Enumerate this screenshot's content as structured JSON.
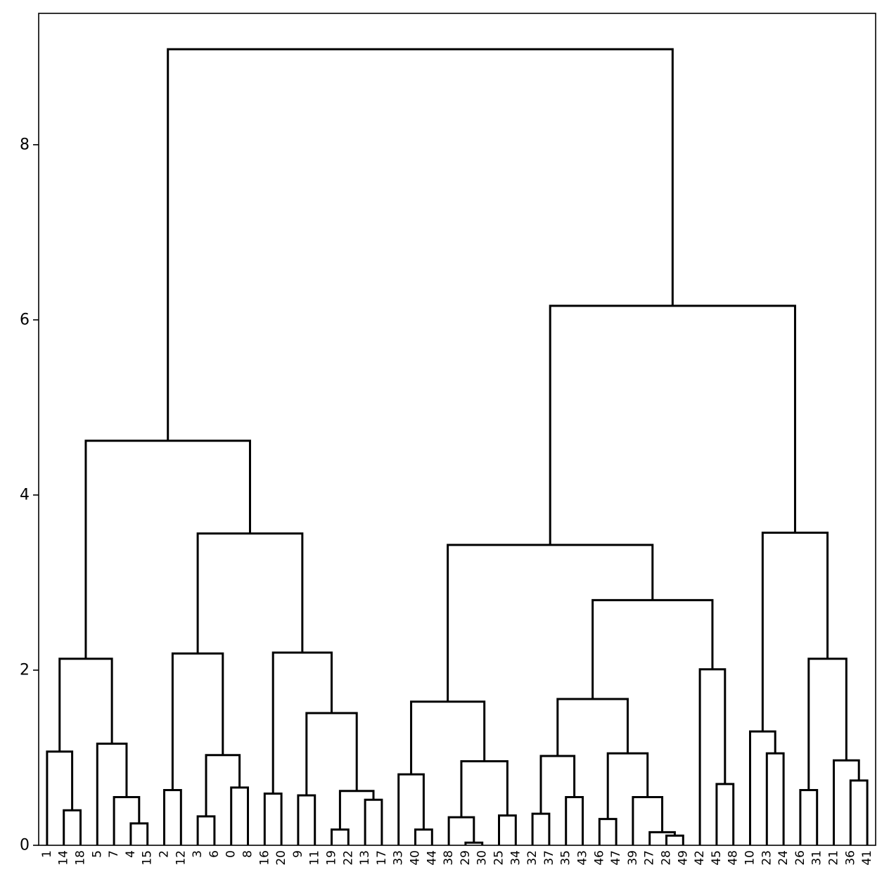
{
  "chart_data": {
    "type": "dendrogram",
    "title": "",
    "xlabel": "",
    "ylabel": "",
    "ylim": [
      0,
      9.5
    ],
    "yticks": [
      0,
      2,
      4,
      6,
      8
    ],
    "grid": false,
    "line_color": "#000000",
    "leaf_labels": [
      "1",
      "14",
      "18",
      "5",
      "7",
      "4",
      "15",
      "2",
      "12",
      "3",
      "6",
      "0",
      "8",
      "16",
      "20",
      "9",
      "11",
      "19",
      "22",
      "13",
      "17",
      "33",
      "40",
      "44",
      "38",
      "29",
      "30",
      "25",
      "34",
      "32",
      "37",
      "35",
      "43",
      "46",
      "47",
      "39",
      "27",
      "28",
      "49",
      "42",
      "45",
      "48",
      "10",
      "23",
      "24",
      "26",
      "31",
      "21",
      "36",
      "41"
    ],
    "merges": [
      {
        "left": "14",
        "right": "18",
        "height": 0.4
      },
      {
        "left": "1",
        "right": "m0",
        "height": 1.07
      },
      {
        "left": "4",
        "right": "15",
        "height": 0.25
      },
      {
        "left": "7",
        "right": "m2",
        "height": 0.55
      },
      {
        "left": "5",
        "right": "m3",
        "height": 1.16
      },
      {
        "left": "m1",
        "right": "m4",
        "height": 2.13
      },
      {
        "left": "2",
        "right": "12",
        "height": 0.63
      },
      {
        "left": "3",
        "right": "6",
        "height": 0.33
      },
      {
        "left": "0",
        "right": "8",
        "height": 0.66
      },
      {
        "left": "m7",
        "right": "m8",
        "height": 1.03
      },
      {
        "left": "m6",
        "right": "m9",
        "height": 2.19
      },
      {
        "left": "16",
        "right": "20",
        "height": 0.59
      },
      {
        "left": "9",
        "right": "11",
        "height": 0.57
      },
      {
        "left": "19",
        "right": "22",
        "height": 0.18
      },
      {
        "left": "13",
        "right": "17",
        "height": 0.52
      },
      {
        "left": "m13",
        "right": "m14",
        "height": 0.62
      },
      {
        "left": "m12",
        "right": "m15",
        "height": 1.51
      },
      {
        "left": "m11",
        "right": "m16",
        "height": 2.2
      },
      {
        "left": "m10",
        "right": "m17",
        "height": 3.56
      },
      {
        "left": "m5",
        "right": "m18",
        "height": 4.62
      },
      {
        "left": "40",
        "right": "44",
        "height": 0.18
      },
      {
        "left": "33",
        "right": "m20",
        "height": 0.81
      },
      {
        "left": "29",
        "right": "30",
        "height": 0.03
      },
      {
        "left": "38",
        "right": "m22",
        "height": 0.32
      },
      {
        "left": "25",
        "right": "34",
        "height": 0.34
      },
      {
        "left": "m23",
        "right": "m24",
        "height": 0.96
      },
      {
        "left": "m21",
        "right": "m25",
        "height": 1.64
      },
      {
        "left": "32",
        "right": "37",
        "height": 0.36
      },
      {
        "left": "35",
        "right": "43",
        "height": 0.55
      },
      {
        "left": "m27",
        "right": "m28",
        "height": 1.02
      },
      {
        "left": "46",
        "right": "47",
        "height": 0.3
      },
      {
        "left": "28",
        "right": "49",
        "height": 0.11
      },
      {
        "left": "27",
        "right": "m31",
        "height": 0.15
      },
      {
        "left": "39",
        "right": "m32",
        "height": 0.55
      },
      {
        "left": "m30",
        "right": "m33",
        "height": 1.05
      },
      {
        "left": "m29",
        "right": "m34",
        "height": 1.67
      },
      {
        "left": "45",
        "right": "48",
        "height": 0.7
      },
      {
        "left": "42",
        "right": "m36",
        "height": 2.01
      },
      {
        "left": "m35",
        "right": "m37",
        "height": 2.8
      },
      {
        "left": "m26",
        "right": "m38",
        "height": 3.43
      },
      {
        "left": "23",
        "right": "24",
        "height": 1.05
      },
      {
        "left": "10",
        "right": "m40",
        "height": 1.3
      },
      {
        "left": "26",
        "right": "31",
        "height": 0.63
      },
      {
        "left": "36",
        "right": "41",
        "height": 0.74
      },
      {
        "left": "21",
        "right": "m43",
        "height": 0.97
      },
      {
        "left": "m42",
        "right": "m44",
        "height": 2.13
      },
      {
        "left": "m41",
        "right": "m45",
        "height": 3.57
      },
      {
        "left": "m39",
        "right": "m46",
        "height": 6.16
      },
      {
        "left": "m19",
        "right": "m47",
        "height": 9.09
      }
    ]
  }
}
